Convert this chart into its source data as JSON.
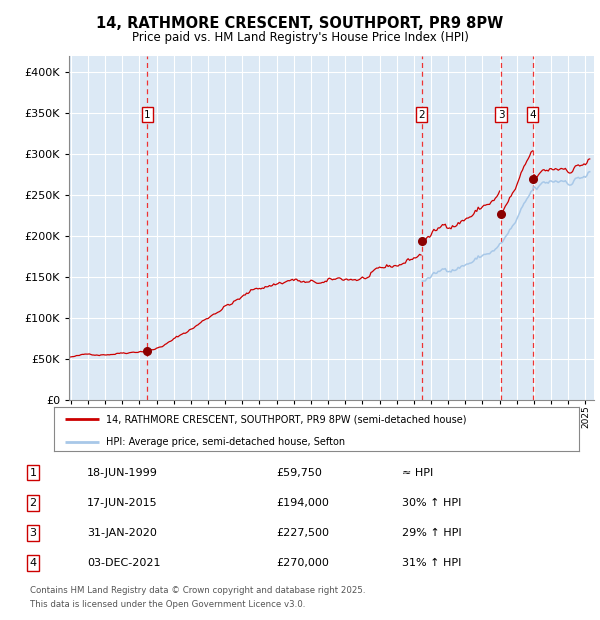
{
  "title": "14, RATHMORE CRESCENT, SOUTHPORT, PR9 8PW",
  "subtitle": "Price paid vs. HM Land Registry's House Price Index (HPI)",
  "legend_line1": "14, RATHMORE CRESCENT, SOUTHPORT, PR9 8PW (semi-detached house)",
  "legend_line2": "HPI: Average price, semi-detached house, Sefton",
  "footer1": "Contains HM Land Registry data © Crown copyright and database right 2025.",
  "footer2": "This data is licensed under the Open Government Licence v3.0.",
  "sale_labels": [
    "1",
    "2",
    "3",
    "4"
  ],
  "sale_dates_num": [
    1999.46,
    2015.46,
    2020.08,
    2021.92
  ],
  "sale_prices": [
    59750,
    194000,
    227500,
    270000
  ],
  "sale_notes": [
    "≈ HPI",
    "30% ↑ HPI",
    "29% ↑ HPI",
    "31% ↑ HPI"
  ],
  "hpi_color": "#a8c8e8",
  "price_color": "#cc0000",
  "sale_dot_color": "#8b0000",
  "vline_color": "#ee3333",
  "plot_bg": "#dce9f5",
  "ylim": [
    0,
    420000
  ],
  "yticks": [
    0,
    50000,
    100000,
    150000,
    200000,
    250000,
    300000,
    350000,
    400000
  ],
  "xmin": 1994.9,
  "xmax": 2025.5,
  "table_rows": [
    [
      "1",
      "18-JUN-1999",
      "£59,750",
      "≈ HPI"
    ],
    [
      "2",
      "17-JUN-2015",
      "£194,000",
      "30% ↑ HPI"
    ],
    [
      "3",
      "31-JAN-2020",
      "£227,500",
      "29% ↑ HPI"
    ],
    [
      "4",
      "03-DEC-2021",
      "£270,000",
      "31% ↑ HPI"
    ]
  ],
  "noise_seed": 42
}
